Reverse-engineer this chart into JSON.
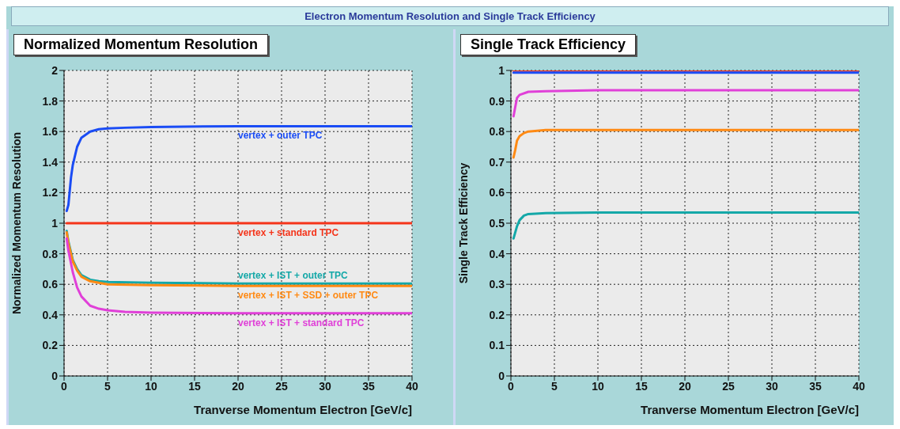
{
  "chart_data": [
    {
      "type": "line",
      "title": "Normalized Momentum Resolution",
      "xlabel": "Tranverse Momentum Electron [GeV/c]",
      "ylabel": "Normalized Momentum Resolution",
      "annotations": [
        "Electron Momentum Resolution and Single Track Efficiency"
      ],
      "xlim": [
        0,
        40
      ],
      "xticks": [
        0,
        5,
        10,
        15,
        20,
        25,
        30,
        35,
        40
      ],
      "ylim": [
        0,
        2
      ],
      "yticks": [
        0,
        0.2,
        0.4,
        0.6,
        0.8,
        1,
        1.2,
        1.4,
        1.6,
        1.8,
        2
      ],
      "grid": true,
      "legend": false,
      "marker": "none",
      "line_style": "solid",
      "series": [
        {
          "name": "vertex + outer TPC",
          "color": "#1a4cf5",
          "x": [
            0.3,
            0.5,
            0.8,
            1,
            1.5,
            2,
            3,
            4,
            5,
            7,
            10,
            20,
            40
          ],
          "values": [
            1.08,
            1.12,
            1.3,
            1.38,
            1.5,
            1.56,
            1.6,
            1.615,
            1.62,
            1.625,
            1.63,
            1.635,
            1.635
          ]
        },
        {
          "name": "vertex + standard TPC",
          "color": "#f5341a",
          "x": [
            0.3,
            5,
            10,
            20,
            40
          ],
          "values": [
            1,
            1,
            1,
            1,
            1
          ]
        },
        {
          "name": "vertex + IST + outer TPC",
          "color": "#14a8a8",
          "x": [
            0.3,
            0.5,
            1,
            1.5,
            2,
            3,
            4,
            5,
            10,
            20,
            40
          ],
          "values": [
            0.95,
            0.88,
            0.76,
            0.7,
            0.66,
            0.63,
            0.62,
            0.615,
            0.61,
            0.605,
            0.605
          ]
        },
        {
          "name": "vertex + IST + SSD + outer TPC",
          "color": "#ff8a14",
          "x": [
            0.3,
            0.5,
            1,
            1.5,
            2,
            3,
            4,
            5,
            10,
            20,
            40
          ],
          "values": [
            0.94,
            0.87,
            0.75,
            0.69,
            0.65,
            0.62,
            0.61,
            0.6,
            0.595,
            0.59,
            0.59
          ]
        },
        {
          "name": "vertex + IST + standard TPC",
          "color": "#e040d8",
          "x": [
            0.3,
            0.5,
            1,
            1.5,
            2,
            3,
            4,
            5,
            7,
            10,
            20,
            40
          ],
          "values": [
            0.9,
            0.82,
            0.68,
            0.58,
            0.52,
            0.46,
            0.44,
            0.43,
            0.42,
            0.415,
            0.41,
            0.41
          ]
        }
      ]
    },
    {
      "type": "line",
      "title": "Single Track Efficiency",
      "xlabel": "Tranverse Momentum Electron [GeV/c]",
      "ylabel": "Single Track Efficiency",
      "xlim": [
        0,
        40
      ],
      "xticks": [
        0,
        5,
        10,
        15,
        20,
        25,
        30,
        35,
        40
      ],
      "ylim": [
        0,
        1
      ],
      "yticks": [
        0,
        0.1,
        0.2,
        0.3,
        0.4,
        0.5,
        0.6,
        0.7,
        0.8,
        0.9,
        1
      ],
      "grid": true,
      "legend": false,
      "marker": "none",
      "line_style": "solid",
      "series": [
        {
          "color": "#f5341a",
          "x": [
            0.3,
            10,
            20,
            40
          ],
          "values": [
            1,
            1,
            1,
            1
          ]
        },
        {
          "color": "#1a4cf5",
          "x": [
            0.3,
            10,
            20,
            40
          ],
          "values": [
            0.993,
            0.993,
            0.993,
            0.993
          ]
        },
        {
          "color": "#e040d8",
          "x": [
            0.3,
            0.5,
            0.7,
            1,
            2,
            4,
            10,
            40
          ],
          "values": [
            0.85,
            0.88,
            0.91,
            0.92,
            0.93,
            0.932,
            0.935,
            0.935
          ]
        },
        {
          "color": "#ff8a14",
          "x": [
            0.3,
            0.5,
            0.7,
            1,
            1.5,
            2,
            4,
            40
          ],
          "values": [
            0.715,
            0.74,
            0.77,
            0.785,
            0.795,
            0.8,
            0.805,
            0.805
          ]
        },
        {
          "color": "#14a8a8",
          "x": [
            0.3,
            0.5,
            0.7,
            1,
            1.5,
            2,
            4,
            10,
            40
          ],
          "values": [
            0.45,
            0.47,
            0.49,
            0.51,
            0.525,
            0.53,
            0.533,
            0.535,
            0.535
          ]
        }
      ]
    }
  ]
}
